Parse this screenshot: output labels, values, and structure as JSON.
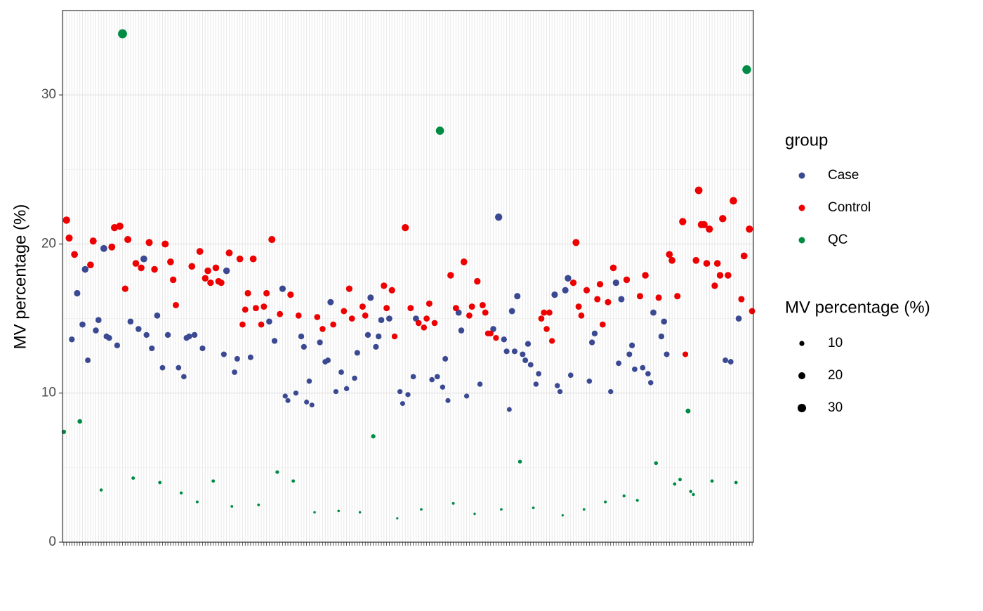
{
  "chart_data": {
    "type": "scatter",
    "y_label": "MV percentage (%)",
    "xlim": [
      0.5,
      259.5
    ],
    "ylim": [
      0,
      35.66
    ],
    "yticks": [
      0,
      10,
      20,
      30
    ],
    "minor_yticks": [
      5,
      15,
      25
    ],
    "grid": true,
    "legend_position": "right",
    "legend_title": "group",
    "size_legend": {
      "title": "MV percentage (%)",
      "values": [
        10,
        20,
        30
      ]
    },
    "series": [
      {
        "name": "Case",
        "color": "#3b4992",
        "x": [
          4,
          6,
          8,
          9,
          10,
          13,
          14,
          16,
          17,
          18,
          21,
          26,
          29,
          31,
          32,
          34,
          36,
          38,
          40,
          44,
          46,
          47,
          48,
          50,
          53,
          61,
          62,
          65,
          66,
          71,
          78,
          80,
          83,
          84,
          85,
          88,
          90,
          91,
          92,
          93,
          94,
          97,
          99,
          100,
          101,
          103,
          105,
          107,
          110,
          111,
          115,
          116,
          118,
          119,
          120,
          123,
          127,
          128,
          130,
          132,
          133,
          139,
          141,
          143,
          144,
          145,
          149,
          150,
          152,
          157,
          162,
          164,
          166,
          167,
          168,
          169,
          170,
          171,
          173,
          174,
          175,
          176,
          178,
          179,
          185,
          186,
          187,
          189,
          190,
          191,
          198,
          199,
          200,
          206,
          208,
          209,
          210,
          213,
          214,
          215,
          218,
          220,
          221,
          222,
          225,
          226,
          227,
          249,
          251,
          254
        ],
        "values": [
          13.6,
          16.7,
          14.6,
          18.3,
          12.2,
          14.2,
          14.9,
          19.7,
          13.8,
          13.7,
          13.2,
          14.8,
          14.3,
          19.0,
          13.9,
          13.0,
          15.2,
          11.7,
          13.9,
          11.7,
          11.1,
          13.7,
          13.8,
          13.9,
          13.0,
          12.6,
          18.2,
          11.4,
          12.3,
          12.4,
          14.8,
          13.5,
          17.0,
          9.8,
          9.5,
          10.0,
          13.8,
          13.1,
          9.4,
          10.8,
          9.2,
          13.4,
          12.1,
          12.2,
          16.1,
          10.1,
          11.4,
          10.3,
          11.0,
          12.7,
          13.9,
          16.4,
          13.1,
          13.8,
          14.9,
          15.0,
          10.1,
          9.3,
          9.9,
          11.1,
          15.0,
          10.9,
          11.1,
          10.4,
          12.3,
          9.5,
          15.4,
          14.2,
          9.8,
          10.6,
          14.3,
          21.8,
          13.6,
          12.8,
          8.9,
          15.5,
          12.8,
          16.5,
          12.6,
          12.2,
          13.3,
          11.9,
          10.6,
          11.3,
          16.6,
          10.5,
          10.1,
          16.9,
          17.7,
          11.2,
          10.8,
          13.4,
          14.0,
          10.1,
          17.4,
          12.0,
          16.3,
          12.6,
          13.2,
          11.6,
          11.7,
          11.3,
          10.7,
          15.4,
          13.8,
          14.8,
          12.6,
          12.2,
          12.1,
          15.0
        ]
      },
      {
        "name": "Control",
        "color": "#ee0000",
        "x": [
          2,
          3,
          5,
          11,
          12,
          19,
          20,
          22,
          24,
          25,
          28,
          30,
          33,
          35,
          39,
          41,
          42,
          43,
          49,
          52,
          54,
          55,
          56,
          58,
          59,
          60,
          63,
          67,
          68,
          69,
          70,
          72,
          73,
          75,
          76,
          77,
          79,
          82,
          86,
          89,
          96,
          98,
          102,
          106,
          108,
          109,
          113,
          114,
          121,
          122,
          124,
          125,
          129,
          131,
          134,
          136,
          137,
          138,
          140,
          146,
          148,
          151,
          153,
          154,
          156,
          158,
          159,
          160,
          161,
          163,
          180,
          181,
          182,
          183,
          184,
          192,
          193,
          194,
          195,
          197,
          201,
          202,
          203,
          205,
          207,
          212,
          217,
          219,
          224,
          228,
          229,
          231,
          233,
          234,
          238,
          239,
          240,
          241,
          242,
          243,
          245,
          246,
          247,
          248,
          250,
          252,
          255,
          256,
          258,
          259
        ],
        "values": [
          21.6,
          20.4,
          19.3,
          18.6,
          20.2,
          19.8,
          21.1,
          21.2,
          17.0,
          20.3,
          18.7,
          18.4,
          20.1,
          18.3,
          20.0,
          18.8,
          17.6,
          15.9,
          18.5,
          19.5,
          17.7,
          18.2,
          17.4,
          18.4,
          17.5,
          17.4,
          19.4,
          19.0,
          14.6,
          15.6,
          16.7,
          19.0,
          15.7,
          14.6,
          15.8,
          16.7,
          20.3,
          15.3,
          16.6,
          15.2,
          15.1,
          14.3,
          14.6,
          15.5,
          17.0,
          15.0,
          15.8,
          15.2,
          17.2,
          15.7,
          16.9,
          13.8,
          21.1,
          15.7,
          14.7,
          14.4,
          15.0,
          16.0,
          14.7,
          17.9,
          15.7,
          18.8,
          15.2,
          15.8,
          17.5,
          15.9,
          15.4,
          14.0,
          14.0,
          13.7,
          15.0,
          15.4,
          14.3,
          15.4,
          13.5,
          17.4,
          20.1,
          15.8,
          15.2,
          16.9,
          16.3,
          17.3,
          14.6,
          16.1,
          18.4,
          17.6,
          16.5,
          17.9,
          16.4,
          19.3,
          18.9,
          16.5,
          21.5,
          12.6,
          18.9,
          23.6,
          21.3,
          21.3,
          18.7,
          21.0,
          17.2,
          18.7,
          17.9,
          21.7,
          17.9,
          22.9,
          16.3,
          19.2,
          21.0,
          15.5
        ]
      },
      {
        "name": "QC",
        "color": "#008b45",
        "x": [
          1,
          7,
          15,
          23,
          27,
          37,
          45,
          51,
          57,
          64,
          74,
          81,
          87,
          95,
          104,
          112,
          117,
          126,
          135,
          142,
          147,
          155,
          165,
          172,
          177,
          188,
          196,
          204,
          211,
          216,
          223,
          230,
          232,
          235,
          236,
          237,
          244,
          253,
          257
        ],
        "values": [
          7.4,
          8.1,
          3.5,
          34.1,
          4.3,
          4.0,
          3.3,
          2.7,
          4.1,
          2.4,
          2.5,
          4.7,
          4.1,
          2.0,
          2.1,
          2.0,
          7.1,
          1.6,
          2.2,
          27.6,
          2.6,
          1.9,
          2.2,
          5.4,
          2.3,
          1.8,
          2.2,
          2.7,
          3.1,
          2.8,
          5.3,
          3.9,
          4.2,
          8.8,
          3.4,
          3.2,
          4.1,
          4.0,
          31.7
        ]
      }
    ]
  }
}
